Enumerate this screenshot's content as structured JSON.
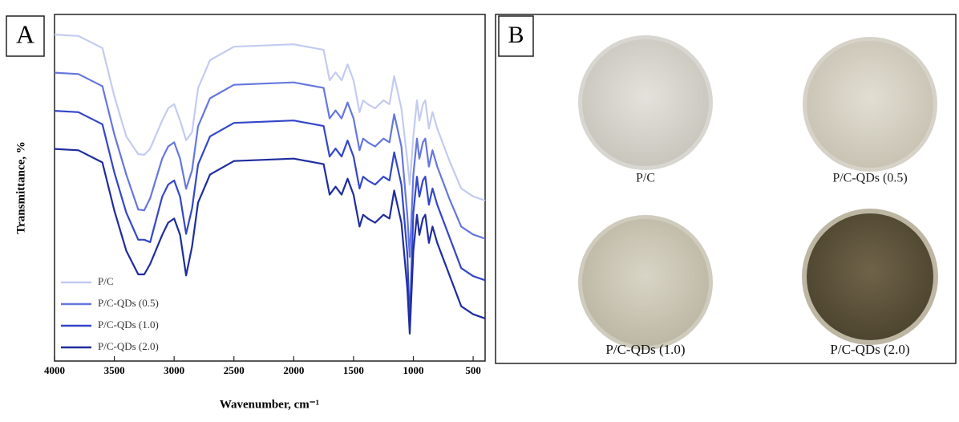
{
  "panel_a": {
    "label": "A"
  },
  "chart_data": {
    "type": "line",
    "xlabel": "Wavenumber, cm⁻¹",
    "ylabel": "Transmittance, %",
    "xlim": [
      4000,
      400
    ],
    "xticks": [
      4000,
      3500,
      3000,
      2500,
      2000,
      1500,
      1000,
      500
    ],
    "ylim": [
      0,
      100
    ],
    "legend": "lower-left",
    "x": [
      4000,
      3800,
      3600,
      3500,
      3400,
      3300,
      3250,
      3200,
      3100,
      3050,
      3000,
      2950,
      2900,
      2850,
      2800,
      2700,
      2500,
      2000,
      1750,
      1700,
      1650,
      1600,
      1550,
      1500,
      1450,
      1420,
      1380,
      1320,
      1250,
      1200,
      1160,
      1100,
      1050,
      1030,
      1000,
      970,
      950,
      920,
      900,
      870,
      840,
      800,
      700,
      600,
      500,
      400
    ],
    "series": [
      {
        "name": "P/C",
        "color": "#c3cbf2",
        "values": [
          94.2,
          93.8,
          90.3,
          76.4,
          64.8,
          59.7,
          59.5,
          61.3,
          69.4,
          72.9,
          74.1,
          69.4,
          63.7,
          66.0,
          78.7,
          86.8,
          90.7,
          91.4,
          89.8,
          81.0,
          83.3,
          81.0,
          85.6,
          81.0,
          71.8,
          75.2,
          74.1,
          72.9,
          75.2,
          74.1,
          82.2,
          72.9,
          57.9,
          50.9,
          64.8,
          75.2,
          69.4,
          74.1,
          75.2,
          67.1,
          71.8,
          67.1,
          57.9,
          49.8,
          47.5,
          46.3
        ]
      },
      {
        "name": "P/C-QDs (0.5)",
        "color": "#6577de",
        "values": [
          83.2,
          82.8,
          79.3,
          65.4,
          53.8,
          43.7,
          43.5,
          47.0,
          58.4,
          61.9,
          63.1,
          58.4,
          49.7,
          55.0,
          67.7,
          75.8,
          79.7,
          80.4,
          78.8,
          70.0,
          72.3,
          70.0,
          74.6,
          70.0,
          60.8,
          64.2,
          63.1,
          61.9,
          64.2,
          63.1,
          71.2,
          61.9,
          42.0,
          30.0,
          53.8,
          64.2,
          58.4,
          63.1,
          64.2,
          56.1,
          60.8,
          56.1,
          46.9,
          38.8,
          36.5,
          35.3
        ]
      },
      {
        "name": "P/C-QDs (1.0)",
        "color": "#3446c9",
        "values": [
          72.2,
          71.8,
          68.3,
          54.4,
          42.8,
          35.0,
          35.0,
          34.3,
          47.4,
          50.9,
          52.1,
          47.4,
          36.7,
          44.0,
          56.7,
          64.8,
          68.7,
          69.4,
          67.8,
          59.0,
          61.3,
          59.0,
          63.6,
          59.0,
          49.8,
          53.2,
          52.1,
          50.9,
          53.2,
          52.1,
          60.2,
          50.9,
          30.9,
          10.9,
          42.8,
          53.2,
          47.4,
          52.1,
          53.2,
          45.1,
          49.8,
          45.1,
          35.9,
          26.8,
          24.5,
          23.3
        ]
      },
      {
        "name": "P/C-QDs (2.0)",
        "color": "#1f2c9e",
        "values": [
          61.2,
          60.8,
          57.3,
          43.4,
          31.8,
          25.0,
          25.0,
          28.0,
          36.4,
          39.9,
          41.1,
          36.4,
          24.7,
          33.0,
          45.7,
          53.8,
          57.7,
          58.4,
          56.8,
          48.0,
          50.3,
          48.0,
          52.6,
          48.0,
          38.8,
          42.2,
          41.1,
          39.9,
          42.2,
          41.1,
          49.2,
          39.9,
          20.9,
          7.9,
          31.8,
          42.2,
          36.4,
          41.1,
          42.2,
          34.1,
          38.8,
          34.1,
          24.9,
          15.8,
          13.5,
          12.3
        ]
      }
    ]
  },
  "panel_b": {
    "label": "B",
    "samples": [
      "P/C",
      "P/C-QDs (0.5)",
      "P/C-QDs (1.0)",
      "P/C-QDs (2.0)"
    ]
  }
}
